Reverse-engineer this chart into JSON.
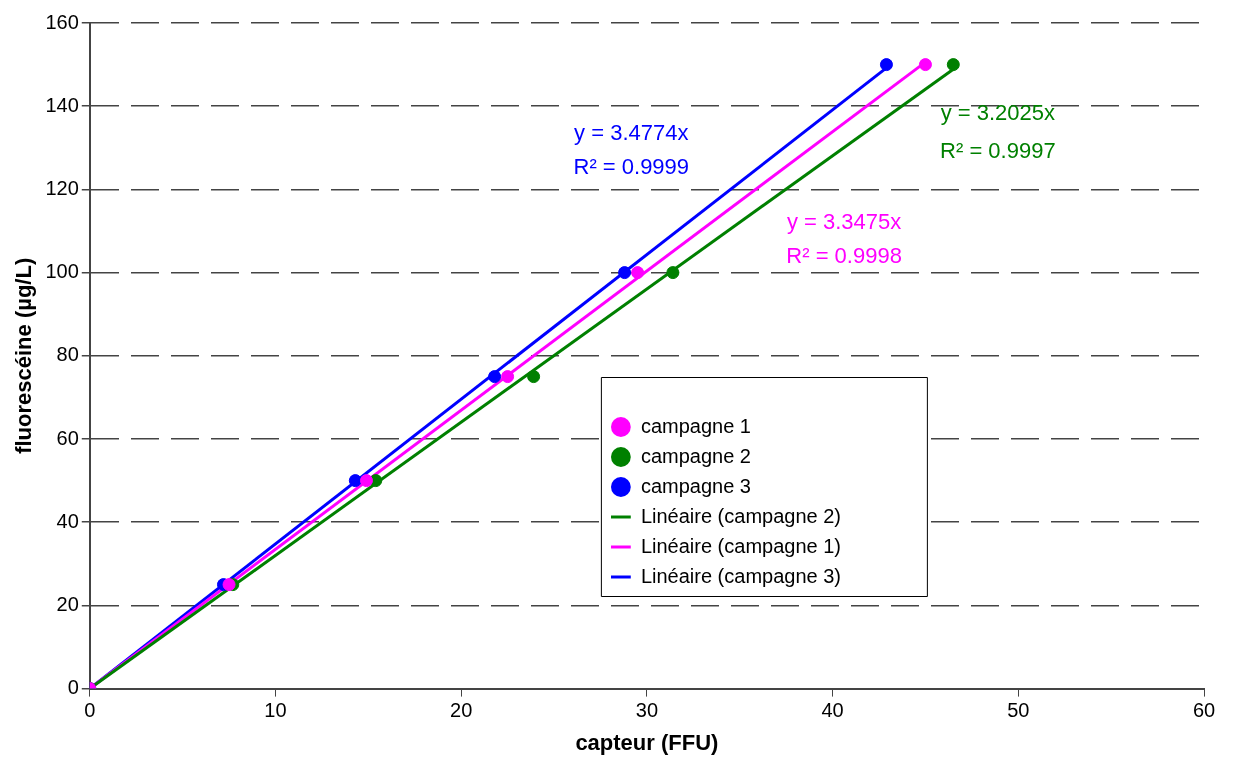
{
  "chart_data": {
    "type": "scatter",
    "xlabel": "capteur (FFU)",
    "ylabel": "fluorescéine (µg/L)",
    "xlim": [
      0,
      60
    ],
    "xticks": [
      0,
      10,
      20,
      30,
      40,
      50,
      60
    ],
    "ylim": [
      0,
      160
    ],
    "yticks": [
      0,
      20,
      40,
      60,
      80,
      100,
      120,
      140,
      160
    ],
    "grid": "y",
    "legend": "right",
    "marker": "circle",
    "series": [
      {
        "name": "campagne 1",
        "color": "#ff00ff",
        "x": [
          0,
          7.5,
          14.9,
          22.5,
          29.5,
          45.0
        ],
        "values": [
          0,
          25,
          50,
          75,
          100,
          150
        ]
      },
      {
        "name": "campagne 2",
        "color": "#008000",
        "x": [
          0,
          7.7,
          15.4,
          23.9,
          31.4,
          46.5
        ],
        "values": [
          0,
          25,
          50,
          75,
          100,
          150
        ]
      },
      {
        "name": "campagne 3",
        "color": "#0000ff",
        "x": [
          0,
          7.2,
          14.3,
          21.8,
          28.8,
          42.9
        ],
        "values": [
          0,
          25,
          50,
          75,
          100,
          150
        ]
      },
      {
        "name": "Linéaire (campagne 2)",
        "type": "line",
        "marker": "none",
        "color": "#008000",
        "x": [
          0,
          46.5
        ],
        "values": [
          0,
          148.9
        ]
      },
      {
        "name": "Linéaire (campagne 1)",
        "type": "line",
        "marker": "none",
        "color": "#ff00ff",
        "x": [
          0,
          45.0
        ],
        "values": [
          0,
          150.6
        ]
      },
      {
        "name": "Linéaire (campagne 3)",
        "type": "line",
        "marker": "none",
        "color": "#0000ff",
        "x": [
          0,
          42.9
        ],
        "values": [
          0,
          149.2
        ]
      }
    ],
    "annotations": [
      "y = 3.2025x",
      "R² = 0.9997",
      "y = 3.3475x",
      "R² = 0.9998",
      "y = 3.4774x",
      "R² = 0.9999"
    ]
  }
}
